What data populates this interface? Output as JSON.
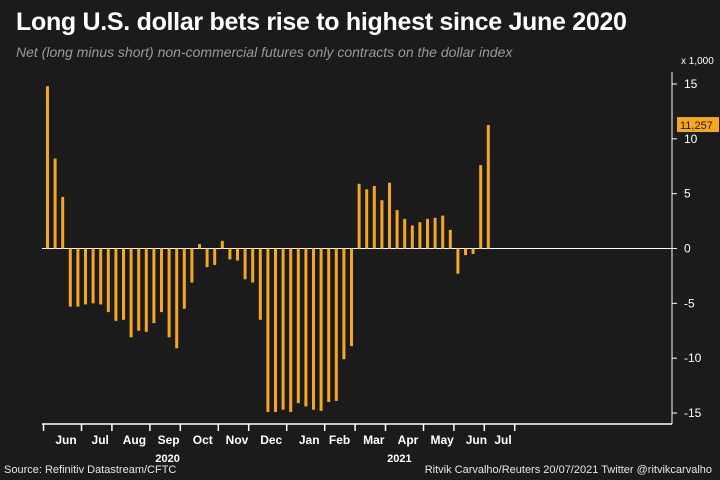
{
  "title": "Long U.S. dollar bets rise to highest since June 2020",
  "subtitle": "Net (long minus short) non-commercial futures only contracts on the dollar index",
  "source": "Source: Refinitiv Datastream/CFTC",
  "credit": "Ritvik Carvalho/Reuters 20/07/2021 Twitter @ritvikcarvalho",
  "chart_data": {
    "type": "bar",
    "unit_label": "x 1,000",
    "ylim": [
      -16,
      16
    ],
    "yticks": [
      15,
      10,
      5,
      0,
      -5,
      -10,
      -15
    ],
    "bar_color": "#f5a623",
    "values": [
      14.8,
      8.2,
      4.7,
      -5.3,
      -5.3,
      -5.1,
      -5.0,
      -5.1,
      -5.8,
      -6.6,
      -6.5,
      -8.1,
      -7.5,
      -7.6,
      -6.8,
      -5.8,
      -8.1,
      -9.1,
      -5.5,
      -3.1,
      0.4,
      -1.7,
      -1.5,
      0.7,
      -1.0,
      -1.1,
      -2.8,
      -3.1,
      -6.5,
      -14.9,
      -14.9,
      -14.7,
      -14.9,
      -14.1,
      -14.4,
      -14.7,
      -14.8,
      -14.0,
      -13.9,
      -10.1,
      -8.9,
      5.9,
      5.4,
      5.7,
      4.4,
      6.0,
      3.5,
      2.7,
      2.1,
      2.4,
      2.7,
      2.8,
      3.0,
      1.7,
      -2.3,
      -0.6,
      -0.5,
      7.6,
      11.257
    ],
    "last_value_label": "11,257",
    "month_labels": [
      {
        "label": "Jun",
        "index": 2.5
      },
      {
        "label": "Jul",
        "index": 7
      },
      {
        "label": "Aug",
        "index": 11.5
      },
      {
        "label": "Sep",
        "index": 16
      },
      {
        "label": "Oct",
        "index": 20.5
      },
      {
        "label": "Nov",
        "index": 25
      },
      {
        "label": "Dec",
        "index": 29.5
      },
      {
        "label": "Jan",
        "index": 34.5
      },
      {
        "label": "Feb",
        "index": 38.5
      },
      {
        "label": "Mar",
        "index": 43
      },
      {
        "label": "Apr",
        "index": 47.5
      },
      {
        "label": "May",
        "index": 52
      },
      {
        "label": "Jun",
        "index": 56.5
      },
      {
        "label": "Jul",
        "index": 60
      }
    ],
    "month_tick_indices": [
      0,
      5,
      9,
      14,
      18,
      23,
      27,
      32,
      37,
      41,
      45,
      50,
      54,
      58,
      62
    ],
    "year_labels": [
      {
        "label": "2020",
        "index": 16
      },
      {
        "label": "2021",
        "index": 46.5
      }
    ]
  }
}
